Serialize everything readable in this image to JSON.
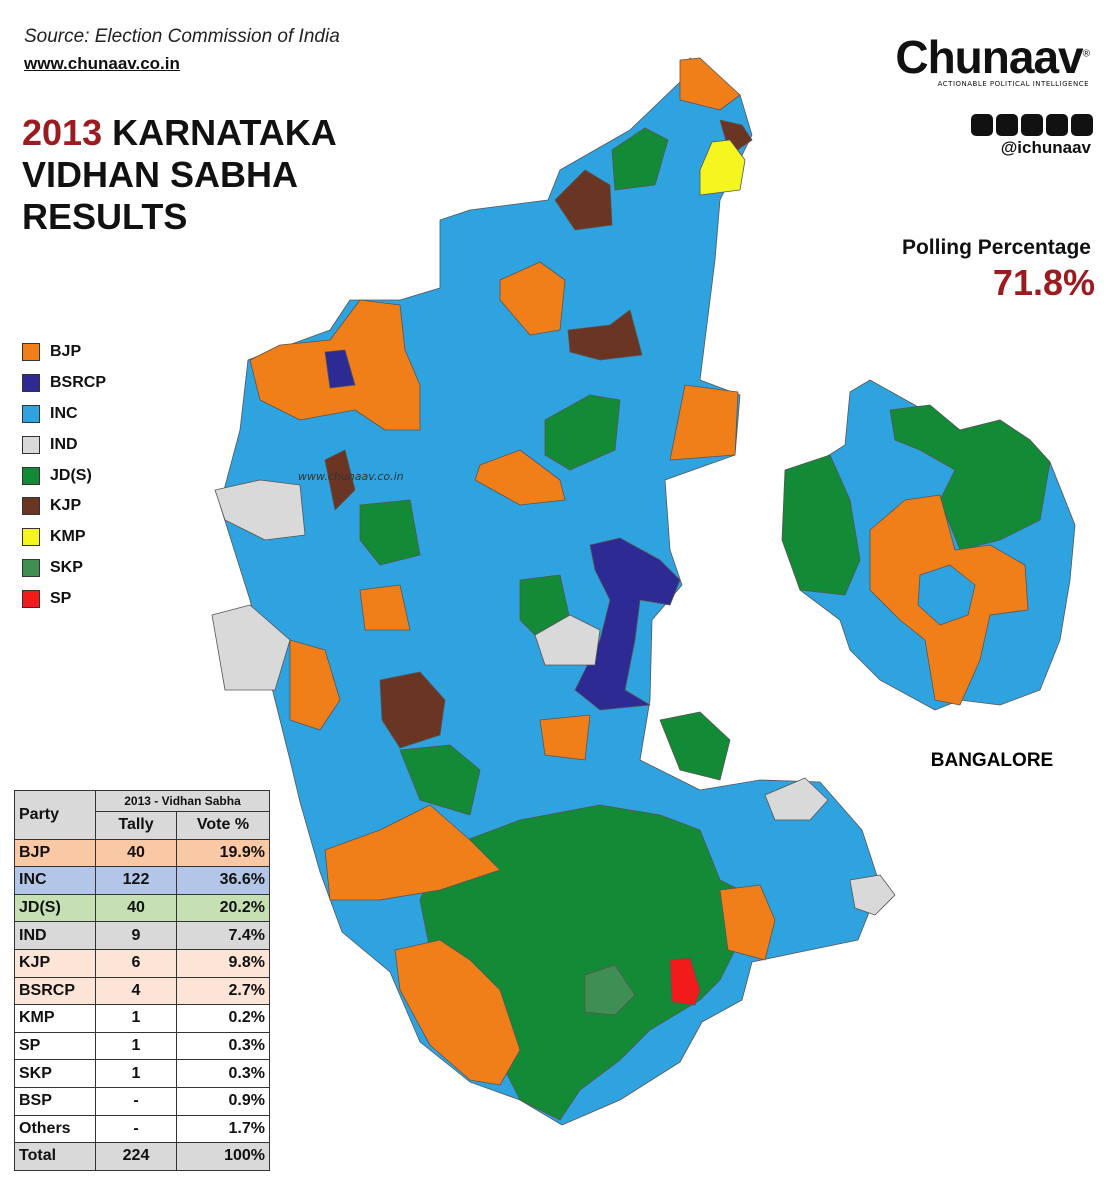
{
  "header": {
    "source": "Source: Election Commission of India",
    "website": "www.chunaav.co.in",
    "title_year": "2013",
    "title_lines": [
      "KARNATAKA",
      "VIDHAN SABHA",
      "RESULTS"
    ]
  },
  "brand": {
    "name": "Chunaav",
    "mark": "®",
    "tagline": "ACTIONABLE POLITICAL INTELLIGENCE",
    "handle": "@ichunaav"
  },
  "polling": {
    "label": "Polling Percentage",
    "value": "71.8%"
  },
  "legend": [
    {
      "label": "BJP",
      "color": "#f07f1a"
    },
    {
      "label": "BSRCP",
      "color": "#2e2a94"
    },
    {
      "label": "INC",
      "color": "#2fa3e0"
    },
    {
      "label": "IND",
      "color": "#d9d9d9"
    },
    {
      "label": "JD(S)",
      "color": "#138a36"
    },
    {
      "label": "KJP",
      "color": "#6b3524"
    },
    {
      "label": "KMP",
      "color": "#f5f51f"
    },
    {
      "label": "SKP",
      "color": "#3f8f55"
    },
    {
      "label": "SP",
      "color": "#f21b1b"
    }
  ],
  "map": {
    "watermark": "www.chunaav.co.in",
    "inset_label": "BANGALORE"
  },
  "table": {
    "group_header": "2013 - Vidhan Sabha",
    "columns": [
      "Party",
      "Tally",
      "Vote %"
    ],
    "rows": [
      [
        "BJP",
        "40",
        "19.9%"
      ],
      [
        "INC",
        "122",
        "36.6%"
      ],
      [
        "JD(S)",
        "40",
        "20.2%"
      ],
      [
        "IND",
        "9",
        "7.4%"
      ],
      [
        "KJP",
        "6",
        "9.8%"
      ],
      [
        "BSRCP",
        "4",
        "2.7%"
      ],
      [
        "KMP",
        "1",
        "0.2%"
      ],
      [
        "SP",
        "1",
        "0.3%"
      ],
      [
        "SKP",
        "1",
        "0.3%"
      ],
      [
        "BSP",
        "-",
        "0.9%"
      ],
      [
        "Others",
        "-",
        "1.7%"
      ],
      [
        "Total",
        "224",
        "100%"
      ]
    ],
    "row_colors": [
      "#f9c9a5",
      "#b4c6e7",
      "#c6e0b4",
      "#d9d9d9",
      "#fce4d6",
      "#fce4d6",
      "#ffffff",
      "#ffffff",
      "#ffffff",
      "#ffffff",
      "#ffffff",
      "#d9d9d9"
    ]
  }
}
